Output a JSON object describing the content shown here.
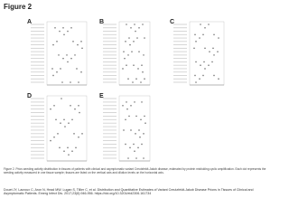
{
  "header": {
    "title": "Figure 2"
  },
  "panels": [
    {
      "label": "A"
    },
    {
      "label": "B"
    },
    {
      "label": "C"
    },
    {
      "label": "D"
    },
    {
      "label": "E"
    }
  ],
  "caption": "Figure 2. Prion-seeding activity distribution in tissues of patients with clinical and asymptomatic variant Creutzfeldt-Jakob disease, estimated by protein misfolding cyclic amplification. Each dot represents the seeding activity measured in one tissue sample; tissues are listed on the vertical axis and dilution levels on the horizontal axis.",
  "citation": "Douet JY, Lacroux C, Aron N, Head MW, Lugan S, Tillier C, et al. Distribution and Quantitative Estimates of Variant Creutzfeldt-Jakob Disease Prions in Tissues of Clinical and Asymptomatic Patients. Emerg Infect Dis. 2017;23(6):946-956. https://doi.org/10.3201/eid2306.161734"
}
